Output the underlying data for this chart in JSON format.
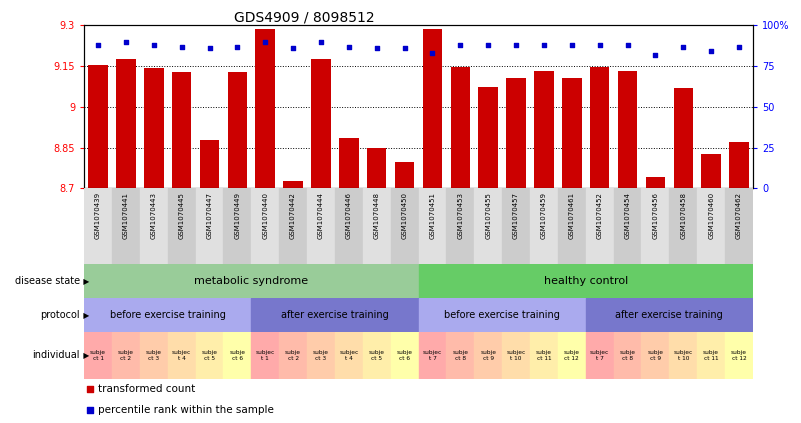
{
  "title": "GDS4909 / 8098512",
  "samples": [
    "GSM1070439",
    "GSM1070441",
    "GSM1070443",
    "GSM1070445",
    "GSM1070447",
    "GSM1070449",
    "GSM1070440",
    "GSM1070442",
    "GSM1070444",
    "GSM1070446",
    "GSM1070448",
    "GSM1070450",
    "GSM1070451",
    "GSM1070453",
    "GSM1070455",
    "GSM1070457",
    "GSM1070459",
    "GSM1070461",
    "GSM1070452",
    "GSM1070454",
    "GSM1070456",
    "GSM1070458",
    "GSM1070460",
    "GSM1070462"
  ],
  "bar_values": [
    9.155,
    9.175,
    9.143,
    9.128,
    8.878,
    9.128,
    9.285,
    8.725,
    9.175,
    8.885,
    8.848,
    8.797,
    9.285,
    9.147,
    9.072,
    9.105,
    9.133,
    9.105,
    9.147,
    9.133,
    8.74,
    9.07,
    8.825,
    8.87
  ],
  "percentile_values": [
    88,
    90,
    88,
    87,
    86,
    87,
    90,
    86,
    90,
    87,
    86,
    86,
    83,
    88,
    88,
    88,
    88,
    88,
    88,
    88,
    82,
    87,
    84,
    87
  ],
  "ymin": 8.7,
  "ymax": 9.3,
  "yticks": [
    8.7,
    8.85,
    9.0,
    9.15,
    9.3
  ],
  "ytick_labels": [
    "8.7",
    "8.85",
    "9",
    "9.15",
    "9.3"
  ],
  "y2ticks": [
    0,
    25,
    50,
    75,
    100
  ],
  "y2tick_labels": [
    "0",
    "25",
    "50",
    "75",
    "100%"
  ],
  "bar_color": "#cc0000",
  "dot_color": "#0000cc",
  "disease_state": [
    {
      "label": "metabolic syndrome",
      "start": 0,
      "end": 12,
      "color": "#99cc99"
    },
    {
      "label": "healthy control",
      "start": 12,
      "end": 24,
      "color": "#66cc66"
    }
  ],
  "protocol": [
    {
      "label": "before exercise training",
      "start": 0,
      "end": 6,
      "color": "#aaaaee"
    },
    {
      "label": "after exercise training",
      "start": 6,
      "end": 12,
      "color": "#7777cc"
    },
    {
      "label": "before exercise training",
      "start": 12,
      "end": 18,
      "color": "#aaaaee"
    },
    {
      "label": "after exercise training",
      "start": 18,
      "end": 24,
      "color": "#7777cc"
    }
  ],
  "individual_labels": [
    "subje\nct 1",
    "subje\nct 2",
    "subje\nct 3",
    "subjec\nt 4",
    "subje\nct 5",
    "subje\nct 6",
    "subjec\nt 1",
    "subje\nct 2",
    "subje\nct 3",
    "subjec\nt 4",
    "subje\nct 5",
    "subje\nct 6",
    "subjec\nt 7",
    "subje\nct 8",
    "subje\nct 9",
    "subjec\nt 10",
    "subje\nct 11",
    "subje\nct 12",
    "subjec\nt 7",
    "subje\nct 8",
    "subje\nct 9",
    "subjec\nt 10",
    "subje\nct 11",
    "subje\nct 12"
  ],
  "individual_colors": [
    "#ffaaaa",
    "#ffbbaa",
    "#ffccaa",
    "#ffddaa",
    "#ffeeaa",
    "#ffffaa",
    "#ffaaaa",
    "#ffbbaa",
    "#ffccaa",
    "#ffddaa",
    "#ffeeaa",
    "#ffffaa",
    "#ffaaaa",
    "#ffbbaa",
    "#ffccaa",
    "#ffddaa",
    "#ffeeaa",
    "#ffffaa",
    "#ffaaaa",
    "#ffbbaa",
    "#ffccaa",
    "#ffddaa",
    "#ffeeaa",
    "#ffffaa"
  ],
  "legend_items": [
    {
      "label": "transformed count",
      "color": "#cc0000",
      "marker": "s"
    },
    {
      "label": "percentile rank within the sample",
      "color": "#0000cc",
      "marker": "s"
    }
  ],
  "background_color": "#ffffff",
  "col_bg_even": "#e0e0e0",
  "col_bg_odd": "#cccccc"
}
